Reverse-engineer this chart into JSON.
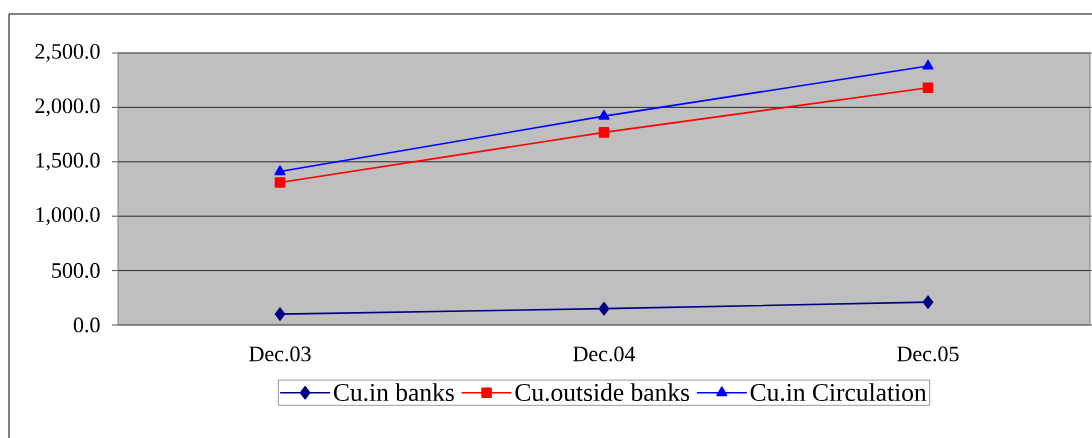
{
  "chart_data": {
    "type": "line",
    "categories": [
      "Dec.03",
      "Dec.04",
      "Dec.05"
    ],
    "series": [
      {
        "name": "Cu.in banks",
        "color": "#000080",
        "marker": "diamond",
        "values": [
          100,
          150,
          210
        ]
      },
      {
        "name": "Cu.outside banks",
        "color": "#ff0000",
        "marker": "square",
        "values": [
          1310,
          1770,
          2180
        ]
      },
      {
        "name": "Cu.in Circulation",
        "color": "#0000ff",
        "marker": "triangle",
        "values": [
          1410,
          1920,
          2380
        ]
      }
    ],
    "ylim": [
      0,
      2500
    ],
    "yticks": [
      {
        "value": 0,
        "label": "0.0"
      },
      {
        "value": 500,
        "label": "500.0"
      },
      {
        "value": 1000,
        "label": "1,000.0"
      },
      {
        "value": 1500,
        "label": "1,500.0"
      },
      {
        "value": 2000,
        "label": "2,000.0"
      },
      {
        "value": 2500,
        "label": "2,500.0"
      }
    ],
    "grid": "y",
    "legend": "bottom",
    "line_style": "solid"
  }
}
